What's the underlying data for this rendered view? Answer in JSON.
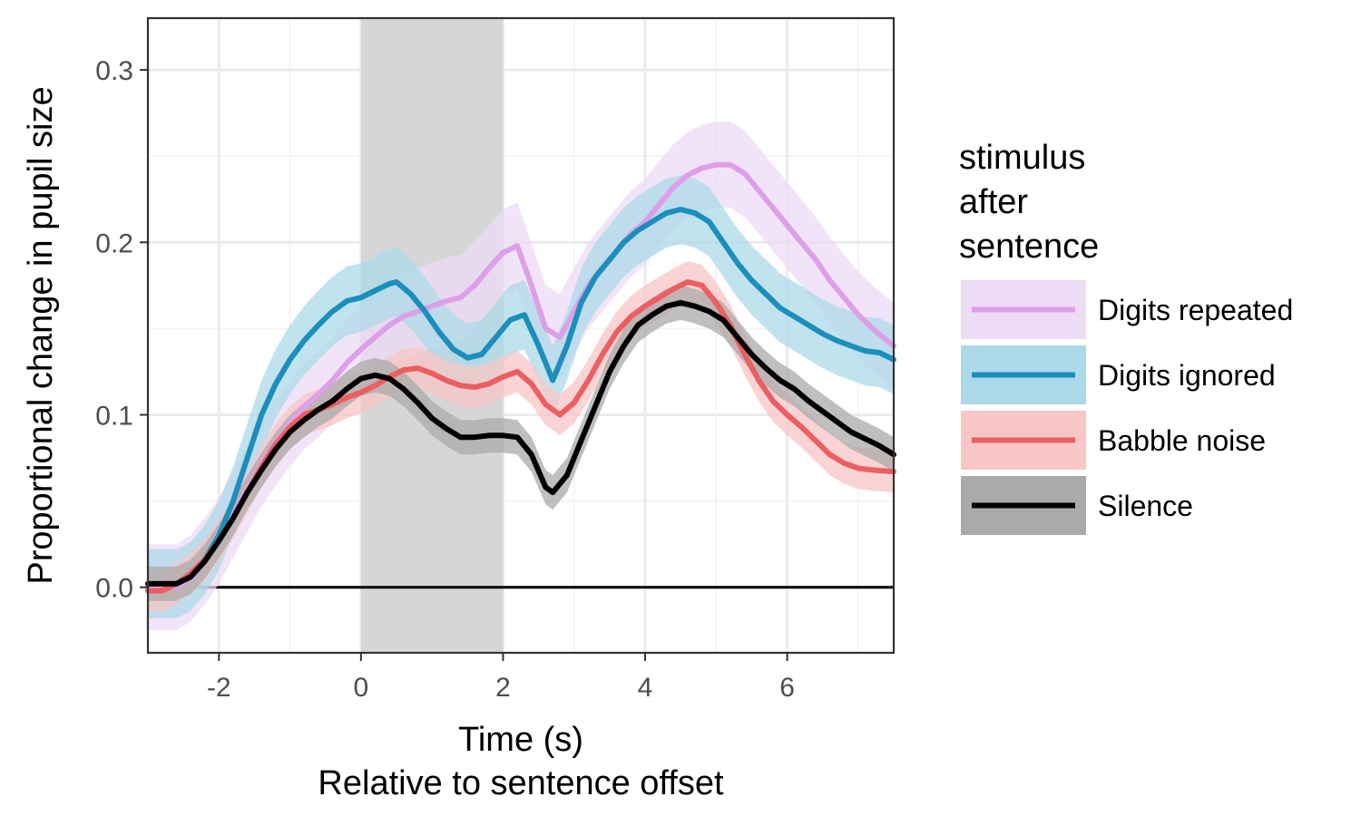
{
  "chart_data": {
    "type": "line",
    "title": "",
    "xlabel": "Time (s)",
    "xlabel_sub": "Relative to sentence offset",
    "ylabel": "Proportional change in pupil size",
    "xlim": [
      -3,
      7.5
    ],
    "ylim": [
      -0.038,
      0.33
    ],
    "x_ticks": [
      -2,
      0,
      2,
      4,
      6
    ],
    "x_tick_labels": [
      "-2",
      "0",
      "2",
      "4",
      "6"
    ],
    "y_ticks": [
      0.0,
      0.1,
      0.2,
      0.3
    ],
    "y_tick_labels": [
      "0.0",
      "0.1",
      "0.2",
      "0.3"
    ],
    "grid": true,
    "reference_line_y": 0,
    "shaded_interval_x": [
      0,
      2
    ],
    "legend": {
      "title_lines": [
        "stimulus",
        "after",
        "sentence"
      ],
      "placement": "right"
    },
    "series": [
      {
        "name": "Digits repeated",
        "color": "#dda0e8",
        "ribbon_color": "#eedbf6",
        "x": [
          -3,
          -2.6,
          -2.4,
          -2.2,
          -2.0,
          -1.8,
          -1.6,
          -1.4,
          -1.2,
          -1.0,
          -0.8,
          -0.6,
          -0.4,
          -0.2,
          0.0,
          0.2,
          0.4,
          0.6,
          0.8,
          1.0,
          1.2,
          1.4,
          1.6,
          1.8,
          2.0,
          2.2,
          2.4,
          2.6,
          2.8,
          3.0,
          3.2,
          3.4,
          3.6,
          3.8,
          4.0,
          4.2,
          4.4,
          4.6,
          4.8,
          5.0,
          5.2,
          5.4,
          5.6,
          5.8,
          6.0,
          6.2,
          6.4,
          6.6,
          6.8,
          7.0,
          7.2,
          7.5
        ],
        "y": [
          0.0,
          0.0,
          0.005,
          0.015,
          0.027,
          0.042,
          0.057,
          0.072,
          0.084,
          0.095,
          0.105,
          0.112,
          0.12,
          0.13,
          0.138,
          0.145,
          0.152,
          0.157,
          0.16,
          0.163,
          0.166,
          0.168,
          0.175,
          0.185,
          0.194,
          0.198,
          0.175,
          0.15,
          0.145,
          0.16,
          0.175,
          0.185,
          0.195,
          0.205,
          0.212,
          0.222,
          0.232,
          0.239,
          0.243,
          0.245,
          0.245,
          0.24,
          0.23,
          0.22,
          0.21,
          0.2,
          0.19,
          0.178,
          0.168,
          0.158,
          0.15,
          0.14
        ],
        "band": 0.025
      },
      {
        "name": "Digits ignored",
        "color": "#1b8fbb",
        "ribbon_color": "#acd9e8",
        "x": [
          -3,
          -2.6,
          -2.4,
          -2.2,
          -2.0,
          -1.8,
          -1.6,
          -1.4,
          -1.2,
          -1.0,
          -0.8,
          -0.6,
          -0.4,
          -0.2,
          0.0,
          0.2,
          0.4,
          0.5,
          0.7,
          0.9,
          1.1,
          1.3,
          1.5,
          1.7,
          1.9,
          2.1,
          2.3,
          2.5,
          2.7,
          2.9,
          3.1,
          3.3,
          3.5,
          3.7,
          3.9,
          4.1,
          4.3,
          4.5,
          4.7,
          4.9,
          5.1,
          5.3,
          5.5,
          5.7,
          5.9,
          6.1,
          6.3,
          6.5,
          6.7,
          6.9,
          7.1,
          7.3,
          7.5
        ],
        "y": [
          0.002,
          0.002,
          0.006,
          0.016,
          0.03,
          0.05,
          0.075,
          0.1,
          0.118,
          0.132,
          0.143,
          0.152,
          0.16,
          0.166,
          0.168,
          0.172,
          0.176,
          0.177,
          0.17,
          0.16,
          0.148,
          0.138,
          0.133,
          0.135,
          0.145,
          0.155,
          0.158,
          0.14,
          0.12,
          0.14,
          0.165,
          0.18,
          0.19,
          0.2,
          0.207,
          0.212,
          0.217,
          0.219,
          0.217,
          0.212,
          0.2,
          0.188,
          0.178,
          0.17,
          0.162,
          0.157,
          0.152,
          0.147,
          0.143,
          0.14,
          0.137,
          0.136,
          0.132
        ],
        "band": 0.02
      },
      {
        "name": "Babble noise",
        "color": "#ec5e61",
        "ribbon_color": "#f8c6c6",
        "x": [
          -3,
          -2.8,
          -2.6,
          -2.4,
          -2.2,
          -2.0,
          -1.8,
          -1.6,
          -1.4,
          -1.2,
          -1.0,
          -0.8,
          -0.6,
          -0.4,
          -0.2,
          0.0,
          0.2,
          0.4,
          0.6,
          0.8,
          1.0,
          1.2,
          1.4,
          1.6,
          1.8,
          2.0,
          2.2,
          2.4,
          2.6,
          2.8,
          3.0,
          3.2,
          3.4,
          3.6,
          3.8,
          4.0,
          4.2,
          4.4,
          4.6,
          4.8,
          5.0,
          5.2,
          5.4,
          5.6,
          5.8,
          6.0,
          6.2,
          6.4,
          6.6,
          6.8,
          7.0,
          7.2,
          7.5
        ],
        "y": [
          -0.002,
          -0.002,
          0.002,
          0.008,
          0.016,
          0.027,
          0.04,
          0.055,
          0.07,
          0.083,
          0.093,
          0.1,
          0.103,
          0.106,
          0.11,
          0.113,
          0.117,
          0.122,
          0.126,
          0.127,
          0.124,
          0.12,
          0.117,
          0.116,
          0.118,
          0.122,
          0.125,
          0.118,
          0.106,
          0.1,
          0.107,
          0.12,
          0.135,
          0.148,
          0.157,
          0.163,
          0.168,
          0.173,
          0.177,
          0.175,
          0.165,
          0.152,
          0.135,
          0.12,
          0.108,
          0.1,
          0.093,
          0.085,
          0.077,
          0.072,
          0.069,
          0.068,
          0.067
        ],
        "band": 0.012
      },
      {
        "name": "Silence",
        "color": "#000000",
        "ribbon_color": "#aaaaaa",
        "x": [
          -3,
          -2.6,
          -2.4,
          -2.2,
          -2.0,
          -1.8,
          -1.6,
          -1.4,
          -1.2,
          -1.0,
          -0.8,
          -0.6,
          -0.4,
          -0.2,
          0.0,
          0.2,
          0.4,
          0.6,
          0.8,
          1.0,
          1.2,
          1.4,
          1.6,
          1.8,
          2.0,
          2.2,
          2.4,
          2.6,
          2.7,
          2.9,
          3.1,
          3.3,
          3.5,
          3.7,
          3.9,
          4.1,
          4.3,
          4.5,
          4.7,
          4.9,
          5.1,
          5.3,
          5.5,
          5.7,
          5.9,
          6.1,
          6.3,
          6.5,
          6.7,
          6.9,
          7.1,
          7.3,
          7.5
        ],
        "y": [
          0.002,
          0.002,
          0.006,
          0.015,
          0.027,
          0.04,
          0.055,
          0.068,
          0.08,
          0.09,
          0.097,
          0.103,
          0.108,
          0.115,
          0.121,
          0.123,
          0.121,
          0.115,
          0.107,
          0.098,
          0.092,
          0.087,
          0.087,
          0.088,
          0.088,
          0.087,
          0.077,
          0.058,
          0.055,
          0.065,
          0.085,
          0.105,
          0.125,
          0.14,
          0.152,
          0.158,
          0.163,
          0.165,
          0.163,
          0.16,
          0.155,
          0.145,
          0.135,
          0.127,
          0.12,
          0.115,
          0.108,
          0.102,
          0.096,
          0.09,
          0.086,
          0.082,
          0.077
        ],
        "band": 0.01
      }
    ]
  }
}
